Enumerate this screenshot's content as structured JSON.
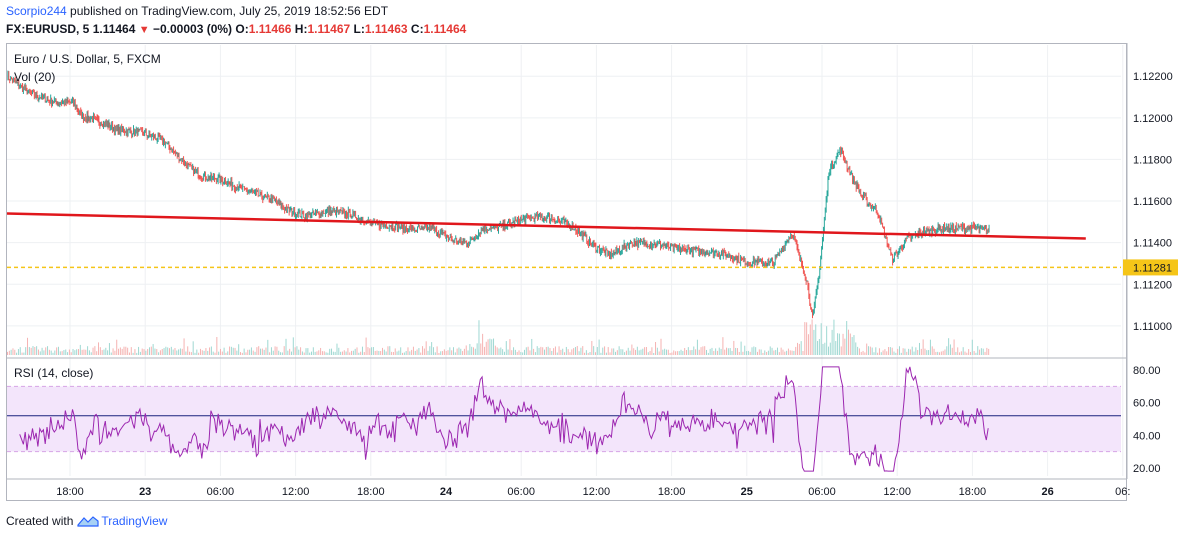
{
  "header": {
    "user": "Scorpio244",
    "published_text": " published on TradingView.com, July 25, 2019 18:52:56 EDT",
    "symbol": "FX:EURUSD, 5",
    "last": "1.11464",
    "change": "−0.00003 (0%)",
    "o_label": "O:",
    "o": "1.11466",
    "h_label": "H:",
    "h": "1.11467",
    "l_label": "L:",
    "l": "1.11463",
    "c_label": "C:",
    "c": "1.11464"
  },
  "legend": {
    "main": "Euro / U.S. Dollar, 5, FXCM",
    "vol": "Vol (20)",
    "rsi": "RSI (14, close)"
  },
  "footer": {
    "created_with": "Created with",
    "brand": "TradingView"
  },
  "colors": {
    "up": "#26a69a",
    "down": "#ef5350",
    "trendline": "#e0171c",
    "support": "#f5c518",
    "rsi_line": "#9c27b0",
    "rsi_band": "#f3e5fb",
    "rsi_mid": "#1a237e",
    "price_tag": "#f5c518"
  },
  "chart_data": [
    {
      "type": "candlestick",
      "title": "Euro / U.S. Dollar, 5, FXCM",
      "y_ticks": [
        "1.12200",
        "1.12000",
        "1.11800",
        "1.11600",
        "1.11400",
        "1.11200",
        "1.11000"
      ],
      "y_tick_values": [
        1.122,
        1.12,
        1.118,
        1.116,
        1.114,
        1.112,
        1.11
      ],
      "ylim": [
        1.1086,
        1.1235
      ],
      "x_ticks": [
        "18:00",
        "23",
        "06:00",
        "12:00",
        "18:00",
        "24",
        "06:00",
        "12:00",
        "18:00",
        "25",
        "06:00",
        "12:00",
        "18:00",
        "26",
        "06:"
      ],
      "close_path": [
        [
          0,
          1.122
        ],
        [
          0.3,
          1.1212
        ],
        [
          0.6,
          1.1208
        ],
        [
          0.9,
          1.1207
        ],
        [
          1.0,
          1.1201
        ],
        [
          1.2,
          1.1199
        ],
        [
          1.5,
          1.1194
        ],
        [
          1.8,
          1.1193
        ],
        [
          2.1,
          1.1189
        ],
        [
          2.4,
          1.1178
        ],
        [
          2.6,
          1.1172
        ],
        [
          2.9,
          1.117
        ],
        [
          3.2,
          1.1165
        ],
        [
          3.6,
          1.116
        ],
        [
          3.8,
          1.1155
        ],
        [
          4.0,
          1.1153
        ],
        [
          4.3,
          1.1155
        ],
        [
          4.6,
          1.1154
        ],
        [
          4.9,
          1.1149
        ],
        [
          5.2,
          1.1148
        ],
        [
          5.5,
          1.1146
        ],
        [
          5.7,
          1.1147
        ],
        [
          6.0,
          1.1141
        ],
        [
          6.2,
          1.114
        ],
        [
          6.4,
          1.1147
        ],
        [
          6.6,
          1.1147
        ],
        [
          7.0,
          1.1152
        ],
        [
          7.3,
          1.1152
        ],
        [
          7.6,
          1.1148
        ],
        [
          7.9,
          1.1138
        ],
        [
          8.1,
          1.1134
        ],
        [
          8.4,
          1.114
        ],
        [
          8.8,
          1.1139
        ],
        [
          9.0,
          1.1137
        ],
        [
          9.3,
          1.1136
        ],
        [
          9.6,
          1.1135
        ],
        [
          9.9,
          1.1131
        ],
        [
          10.3,
          1.113
        ],
        [
          10.55,
          1.1145
        ],
        [
          10.75,
          1.1122
        ],
        [
          10.83,
          1.1103
        ],
        [
          10.93,
          1.113
        ],
        [
          11.05,
          1.1175
        ],
        [
          11.2,
          1.1185
        ],
        [
          11.35,
          1.1172
        ],
        [
          11.5,
          1.1162
        ],
        [
          11.7,
          1.1155
        ],
        [
          11.9,
          1.1132
        ],
        [
          12.1,
          1.1142
        ],
        [
          12.3,
          1.1145
        ],
        [
          12.6,
          1.1147
        ],
        [
          13.0,
          1.1147
        ],
        [
          13.2,
          1.1146
        ]
      ],
      "trendline": [
        [
          0,
          1.1154
        ],
        [
          14.5,
          1.1142
        ]
      ],
      "horizontal_level": 1.11281,
      "price_label": "1.11281"
    },
    {
      "type": "bar",
      "title": "Vol (20)"
    },
    {
      "type": "line",
      "title": "RSI (14, close)",
      "y_ticks": [
        "80.00",
        "60.00",
        "40.00",
        "20.00"
      ],
      "y_tick_values": [
        80,
        60,
        40,
        20
      ],
      "ylim": [
        15,
        85
      ],
      "band": [
        30,
        70
      ],
      "midline": 52
    }
  ]
}
